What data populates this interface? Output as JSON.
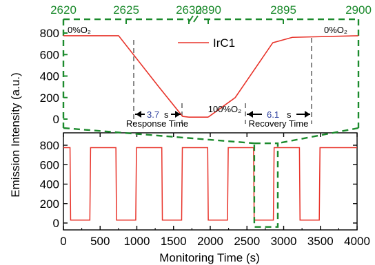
{
  "colors": {
    "series": "#e8332a",
    "inset_frame": "#1b8a2c",
    "guides": "#888888",
    "blue_text": "#2a3d9c"
  },
  "ylabel": "Emission Intensity (a.u.)",
  "chart_data": [
    {
      "type": "line",
      "panel": "inset-zoom",
      "legend": [
        "IrC1"
      ],
      "legend_placement": "top-center",
      "series": [
        {
          "name": "IrC1",
          "segment_left": {
            "x": [
              2620,
              2624.4,
              2627.6,
              2629.5,
              2630.0
            ],
            "y": [
              775,
              775,
              300,
              25,
              18
            ]
          },
          "segment_right": {
            "x": [
              2890,
              2891.8,
              2894.3,
              2895.6,
              2900
            ],
            "y": [
              18,
              200,
              710,
              760,
              775
            ]
          }
        }
      ],
      "x_ticks_left": [
        "2620",
        "2625",
        "2630"
      ],
      "x_ticks_right": [
        "2890",
        "2895",
        "2900"
      ],
      "y_ticks": [
        "0",
        "200",
        "400",
        "600",
        "800"
      ],
      "ylim": [
        0,
        850
      ],
      "annotations": {
        "left_condition": "0%O₂",
        "right_condition": "0%O₂",
        "middle_condition": "100%O₂",
        "response_value": "3.7",
        "response_unit": "s",
        "response_label": "Response Time",
        "recovery_value": "6.1",
        "recovery_unit": "s",
        "recovery_label": "Recovery Time"
      }
    },
    {
      "type": "line",
      "panel": "main",
      "xlabel": "Monitoring Time (s)",
      "xlim": [
        0,
        4000
      ],
      "ylim": [
        -60,
        880
      ],
      "x_ticks": [
        "0",
        "500",
        "1000",
        "1500",
        "2000",
        "2500",
        "3000",
        "3500",
        "4000"
      ],
      "y_ticks": [
        "0",
        "200",
        "400",
        "600",
        "800"
      ],
      "cycle": {
        "start": 0,
        "first_on": 90,
        "period": 625,
        "low_duration": 270,
        "low_value": 30,
        "high_value": 775,
        "cycles": 6,
        "end": 4000
      },
      "zoom_window": {
        "x": [
          2600,
          2920
        ],
        "y": [
          -40,
          820
        ]
      }
    }
  ]
}
